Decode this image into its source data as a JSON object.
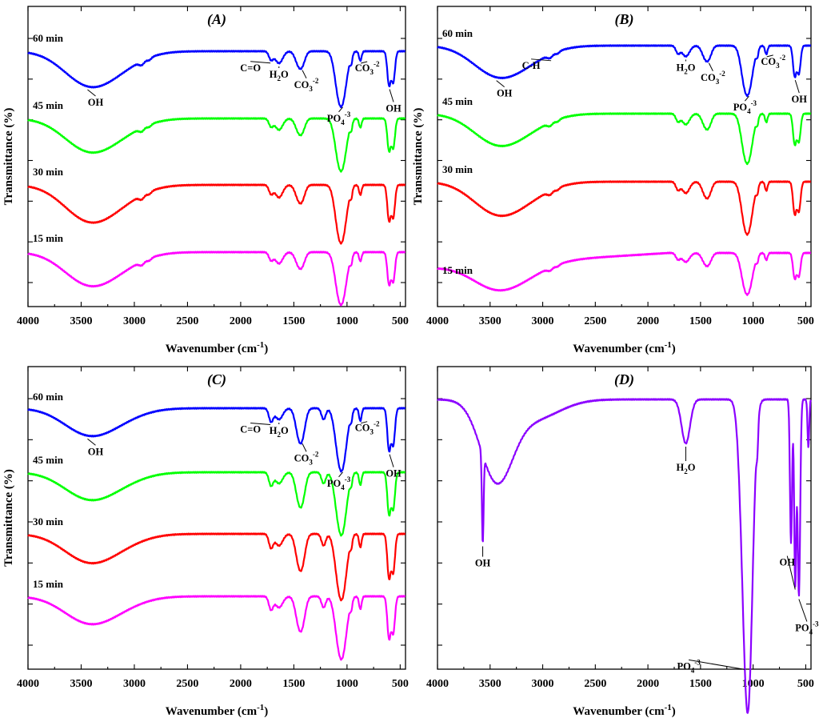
{
  "chart_data": [
    {
      "type": "line",
      "title": "(A)",
      "xlabel_main": "Wavenumber (cm",
      "xlabel_sup": "-1",
      "xlabel_end": ")",
      "ylabel": "Transmittance (%)",
      "xlim": [
        4000,
        450
      ],
      "xticks": [
        4000,
        3500,
        3000,
        2500,
        2000,
        1500,
        1000,
        500
      ],
      "series": [
        {
          "name": "60 min",
          "color": "#0000ff"
        },
        {
          "name": "45 min",
          "color": "#00ff00"
        },
        {
          "name": "30 min",
          "color": "#ff0000"
        },
        {
          "name": "15 min",
          "color": "#ff00ff"
        }
      ],
      "annotations": [
        {
          "text": "OH",
          "x": 3440
        },
        {
          "text": "C=O",
          "x": 1720
        },
        {
          "text": "H",
          "sub": "2",
          "text2": "O",
          "x": 1640
        },
        {
          "text": "CO",
          "sub": "3",
          "sup": "-2",
          "x": 1420
        },
        {
          "text": "PO",
          "sub": "4",
          "sup": "-3",
          "x": 1040
        },
        {
          "text": "CO",
          "sub": "3",
          "sup": "-2",
          "x": 870
        },
        {
          "text": "OH",
          "x": 600
        }
      ]
    },
    {
      "type": "line",
      "title": "(B)",
      "xlabel_main": "Wavenumber (cm",
      "xlabel_sup": "-1",
      "xlabel_end": ")",
      "ylabel": "Transmittance (%)",
      "xlim": [
        4000,
        450
      ],
      "xticks": [
        4000,
        3500,
        3000,
        2500,
        2000,
        1500,
        1000,
        500
      ],
      "series": [
        {
          "name": "60 min",
          "color": "#0000ff"
        },
        {
          "name": "45 min",
          "color": "#00ff00"
        },
        {
          "name": "30 min",
          "color": "#ff0000"
        },
        {
          "name": "15 min",
          "color": "#ff00ff"
        }
      ],
      "annotations": [
        {
          "text": "OH",
          "x": 3440
        },
        {
          "text": "C-H",
          "x": 2920
        },
        {
          "text": "H",
          "sub": "2",
          "text2": "O",
          "x": 1640
        },
        {
          "text": "CO",
          "sub": "3",
          "sup": "-2",
          "x": 1420
        },
        {
          "text": "PO",
          "sub": "4",
          "sup": "-3",
          "x": 1040
        },
        {
          "text": "CO",
          "sub": "3",
          "sup": "-2",
          "x": 870
        },
        {
          "text": "OH",
          "x": 600
        }
      ]
    },
    {
      "type": "line",
      "title": "(C)",
      "xlabel_main": "Wavenumber (cm",
      "xlabel_sup": "-1",
      "xlabel_end": ")",
      "ylabel": "Transmittance (%)",
      "xlim": [
        4000,
        450
      ],
      "xticks": [
        4000,
        3500,
        3000,
        2500,
        2000,
        1500,
        1000,
        500
      ],
      "series": [
        {
          "name": "60 min",
          "color": "#0000ff"
        },
        {
          "name": "45 min",
          "color": "#00ff00"
        },
        {
          "name": "30 min",
          "color": "#ff0000"
        },
        {
          "name": "15 min",
          "color": "#ff00ff"
        }
      ],
      "annotations": [
        {
          "text": "OH",
          "x": 3440
        },
        {
          "text": "C=O",
          "x": 1720
        },
        {
          "text": "H",
          "sub": "2",
          "text2": "O",
          "x": 1640
        },
        {
          "text": "CO",
          "sub": "3",
          "sup": "-2",
          "x": 1420
        },
        {
          "text": "PO",
          "sub": "4",
          "sup": "-3",
          "x": 1040
        },
        {
          "text": "CO",
          "sub": "3",
          "sup": "-2",
          "x": 870
        },
        {
          "text": "OH",
          "x": 600
        }
      ]
    },
    {
      "type": "line",
      "title": "(D)",
      "xlabel_main": "Wavenumber (cm",
      "xlabel_sup": "-1",
      "xlabel_end": ")",
      "ylabel": "",
      "xlim": [
        4000,
        450
      ],
      "xticks": [
        4000,
        3500,
        3000,
        2500,
        2000,
        1500,
        1000,
        500
      ],
      "series": [
        {
          "name": "",
          "color": "#8b00ff"
        }
      ],
      "annotations": [
        {
          "text": "OH",
          "x": 3570
        },
        {
          "text": "H",
          "sub": "2",
          "text2": "O",
          "x": 1640
        },
        {
          "text": "OH",
          "x": 600
        },
        {
          "text": "PO",
          "sub": "4",
          "sup": "-3",
          "x": 1080
        },
        {
          "text": "PO",
          "sub": "4",
          "sup": "-3",
          "x": 565
        }
      ]
    }
  ]
}
